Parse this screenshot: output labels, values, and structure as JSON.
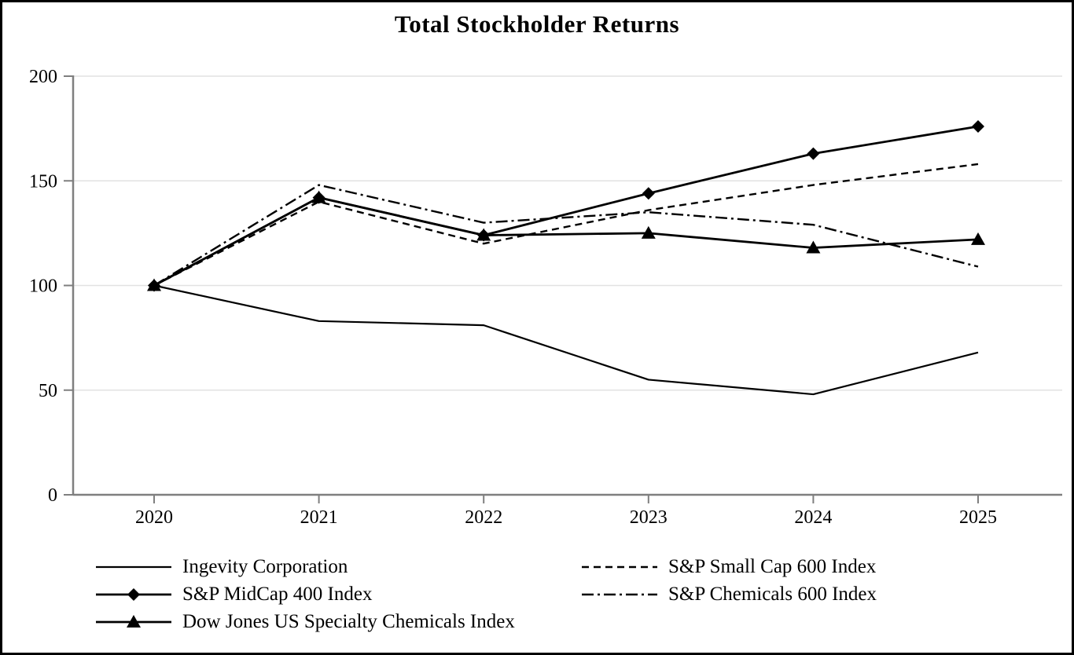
{
  "chart_data": {
    "type": "line",
    "title": "Total Stockholder Returns",
    "categories": [
      "2020",
      "2021",
      "2022",
      "2023",
      "2024",
      "2025"
    ],
    "series": [
      {
        "name": "Ingevity Corporation",
        "line_style": "solid",
        "marker": "none",
        "values": [
          100,
          83,
          81,
          55,
          48,
          68
        ]
      },
      {
        "name": "S&P Small Cap 600 Index",
        "line_style": "dashed",
        "marker": "none",
        "values": [
          100,
          140,
          120,
          136,
          148,
          158
        ]
      },
      {
        "name": "S&P MidCap 400 Index",
        "line_style": "solid",
        "marker": "diamond",
        "values": [
          100,
          142,
          124,
          144,
          163,
          176
        ]
      },
      {
        "name": "S&P Chemicals 600 Index",
        "line_style": "dashdot",
        "marker": "none",
        "values": [
          100,
          148,
          130,
          135,
          129,
          109
        ]
      },
      {
        "name": "Dow Jones US Specialty Chemicals Index",
        "line_style": "solid",
        "marker": "triangle",
        "values": [
          100,
          142,
          124,
          125,
          118,
          122
        ]
      }
    ],
    "xlabel": "",
    "ylabel": "",
    "ylim": [
      0,
      200
    ],
    "y_ticks": [
      0,
      50,
      100,
      150,
      200
    ],
    "grid": true,
    "legend_position": "bottom",
    "colors": {
      "line": "#000000",
      "axis": "#7f7f7f",
      "gridline": "#e2e2e2",
      "background": "#ffffff",
      "frame_border": "#000000"
    }
  }
}
